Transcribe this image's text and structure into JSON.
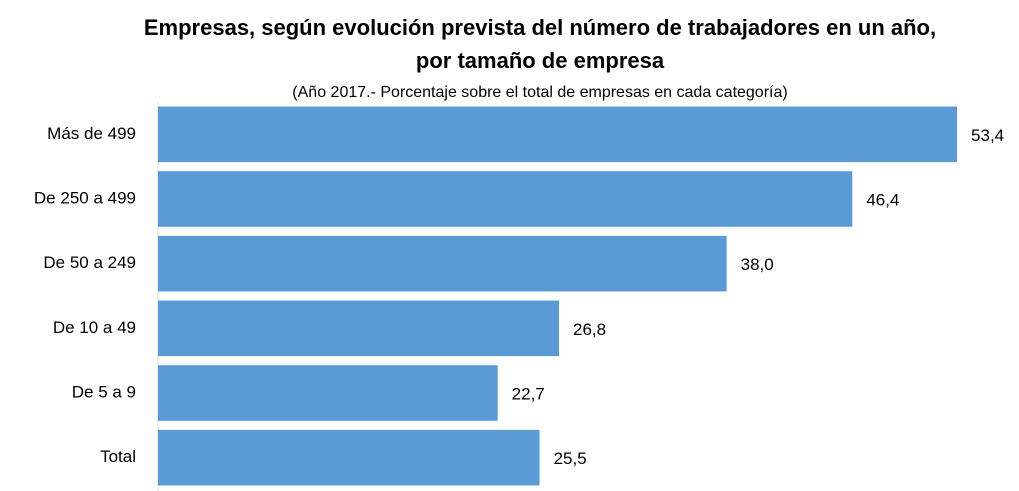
{
  "chart_data": {
    "type": "hbar",
    "title": [
      "Empresas, según evolución prevista del número de trabajadores en un año,",
      "por tamaño de empresa"
    ],
    "subtitle": "(Año 2017.- Porcentaje sobre el total de empresas en cada categoría)",
    "categories": [
      "Más de 499",
      "De 250 a 499",
      "De 50 a 249",
      "De 10 a 49",
      "De 5 a 9",
      "Total"
    ],
    "values": [
      53.4,
      46.4,
      38.0,
      26.8,
      22.7,
      25.5
    ],
    "value_labels": [
      "53,4",
      "46,4",
      "38,0",
      "26,8",
      "22,7",
      "25,5"
    ],
    "color": "#5b9bd5",
    "xlim": [
      0,
      55
    ]
  }
}
